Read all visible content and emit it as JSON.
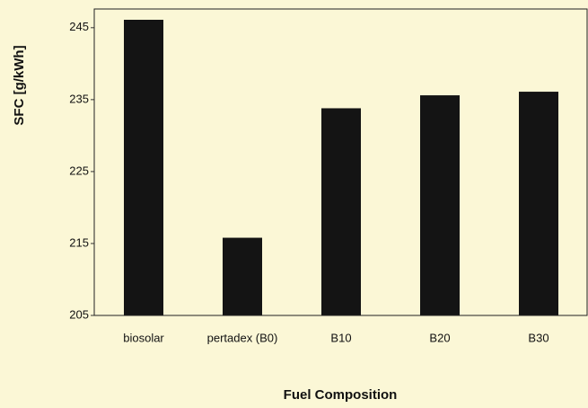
{
  "chart_data": {
    "type": "bar",
    "x_label": "Fuel Composition",
    "y_label": "SFC [g/kWh]",
    "categories": [
      "biosolar",
      "pertadex (B0)",
      "B10",
      "B20",
      "B30"
    ],
    "values": [
      246.1,
      215.8,
      233.8,
      235.6,
      236.1
    ],
    "color": "#141414",
    "ylim": [
      205,
      247.6
    ],
    "yticks": [
      205,
      215,
      225,
      235,
      245
    ],
    "grid": false
  }
}
